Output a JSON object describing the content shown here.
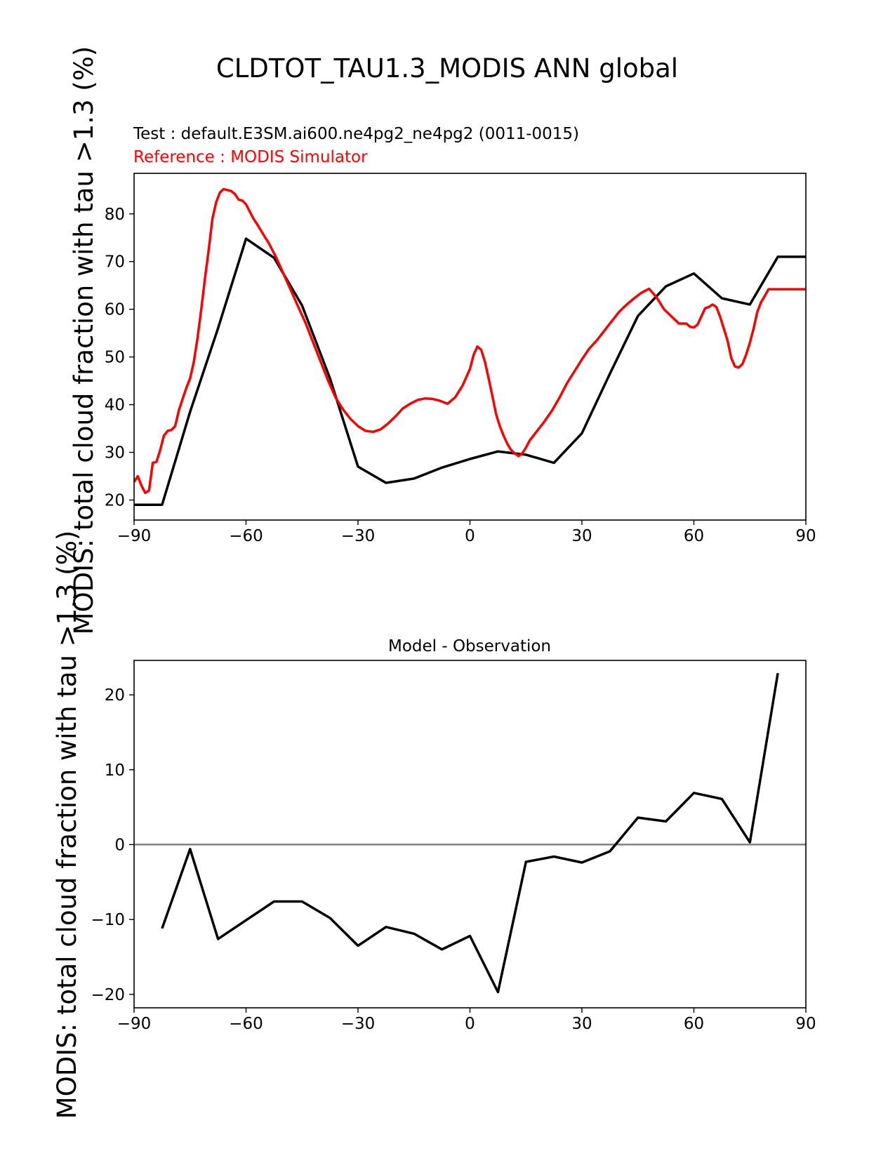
{
  "figure": {
    "title": "CLDTOT_TAU1.3_MODIS ANN global",
    "test_label": "Test : default.E3SM.ai600.ne4pg2_ne4pg2 (0011-0015)",
    "reference_label": "Reference : MODIS Simulator",
    "ylabel": "MODIS: total cloud fraction with tau >1.3 (%)",
    "colors": {
      "test": "#000000",
      "reference": "#ff0000",
      "zero_line": "#808080"
    }
  },
  "chart_data": [
    {
      "type": "line",
      "title": "",
      "xlabel": "",
      "ylabel": "MODIS: total cloud fraction with tau >1.3 (%)",
      "xlim": [
        -90,
        90
      ],
      "ylim": [
        15.8,
        88.5
      ],
      "xticks": [
        -90,
        -60,
        -30,
        0,
        30,
        60,
        90
      ],
      "xtick_labels": [
        "−90",
        "−60",
        "−30",
        "0",
        "30",
        "60",
        "90"
      ],
      "yticks": [
        20,
        30,
        40,
        50,
        60,
        70,
        80
      ],
      "ytick_labels": [
        "20",
        "30",
        "40",
        "50",
        "60",
        "70",
        "80"
      ],
      "grid": false,
      "series": [
        {
          "name": "Test : default.E3SM.ai600.ne4pg2_ne4pg2 (0011-0015)",
          "color": "#000000",
          "x": [
            -90,
            -82.5,
            -75,
            -67.5,
            -60,
            -52.5,
            -45,
            -37.5,
            -30,
            -22.5,
            -15,
            -7.5,
            0,
            7.5,
            15,
            22.5,
            30,
            37.5,
            45,
            52.5,
            60,
            67.5,
            75,
            82.5,
            90
          ],
          "y": [
            19.0,
            19.0,
            38.5,
            56.0,
            74.8,
            70.8,
            60.8,
            45.5,
            27.0,
            23.6,
            24.5,
            26.8,
            28.6,
            30.2,
            29.5,
            27.8,
            34.0,
            46.5,
            58.6,
            64.8,
            67.5,
            62.3,
            61.0,
            71.0,
            71.0
          ]
        },
        {
          "name": "Reference : MODIS Simulator",
          "color": "#ff0000",
          "x": [
            -90,
            -89,
            -88,
            -87,
            -86,
            -85,
            -84,
            -83,
            -82,
            -81,
            -80,
            -79,
            -78,
            -77,
            -76,
            -75,
            -74,
            -73,
            -72,
            -71,
            -70,
            -69,
            -68,
            -67,
            -66,
            -65,
            -64,
            -63,
            -62,
            -61,
            -60,
            -59,
            -58,
            -57,
            -56,
            -55,
            -54,
            -52,
            -50,
            -48,
            -46,
            -44,
            -42,
            -40,
            -38,
            -36,
            -34,
            -32,
            -30,
            -28,
            -26,
            -24,
            -22,
            -20,
            -18,
            -16,
            -14,
            -12,
            -10,
            -8,
            -6,
            -4,
            -2,
            0,
            1,
            2,
            3,
            4,
            5,
            6,
            7,
            8,
            9,
            10,
            11,
            12,
            13,
            14,
            15,
            16,
            18,
            20,
            22,
            24,
            26,
            28,
            30,
            32,
            34,
            36,
            38,
            40,
            42,
            44,
            46,
            48,
            50,
            52,
            54,
            56,
            58,
            59,
            60,
            61,
            62,
            63,
            64,
            65,
            66,
            67,
            68,
            69,
            70,
            71,
            72,
            73,
            74,
            75,
            76,
            77,
            78,
            79,
            80,
            81,
            82,
            83,
            84,
            85,
            86,
            87,
            88,
            89,
            90
          ],
          "y": [
            23.8,
            25.0,
            23.0,
            21.5,
            22.0,
            27.8,
            28.0,
            30.5,
            33.5,
            34.5,
            34.7,
            35.5,
            38.8,
            41.2,
            43.5,
            45.5,
            49.0,
            54.0,
            60.0,
            66.5,
            72.5,
            79.0,
            82.5,
            84.5,
            85.2,
            85.0,
            84.8,
            84.2,
            83.0,
            82.8,
            82.0,
            80.5,
            79.0,
            77.8,
            76.5,
            75.2,
            74.0,
            71.0,
            67.5,
            64.0,
            60.5,
            57.0,
            53.0,
            49.0,
            45.0,
            41.5,
            39.0,
            37.0,
            35.5,
            34.5,
            34.3,
            34.8,
            36.0,
            37.5,
            39.2,
            40.2,
            41.0,
            41.3,
            41.2,
            40.8,
            40.2,
            41.5,
            44.0,
            47.5,
            50.5,
            52.2,
            51.5,
            49.0,
            45.5,
            41.8,
            38.0,
            35.5,
            33.5,
            31.8,
            30.5,
            29.8,
            29.2,
            29.8,
            31.0,
            32.5,
            34.5,
            36.5,
            38.8,
            41.5,
            44.5,
            47.0,
            49.5,
            51.8,
            53.5,
            55.5,
            57.5,
            59.5,
            61.0,
            62.3,
            63.5,
            64.3,
            62.5,
            60.0,
            58.5,
            57.0,
            57.0,
            56.3,
            56.2,
            56.8,
            58.5,
            60.2,
            60.5,
            61.0,
            60.5,
            58.5,
            56.0,
            53.5,
            49.8,
            48.0,
            47.8,
            48.5,
            50.5,
            53.0,
            56.0,
            59.5,
            61.5,
            62.8,
            64.2,
            64.2,
            64.2,
            64.2,
            64.2,
            64.2,
            64.2,
            64.2,
            64.2,
            64.2,
            64.2
          ]
        }
      ]
    },
    {
      "type": "line",
      "title": "Model - Observation",
      "xlabel": "",
      "ylabel": "MODIS: total cloud fraction with tau >1.3 (%)",
      "xlim": [
        -90,
        90
      ],
      "ylim": [
        -21.8,
        24.6
      ],
      "xticks": [
        -90,
        -60,
        -30,
        0,
        30,
        60,
        90
      ],
      "xtick_labels": [
        "−90",
        "−60",
        "−30",
        "0",
        "30",
        "60",
        "90"
      ],
      "yticks": [
        -20,
        -10,
        0,
        10,
        20
      ],
      "ytick_labels": [
        "−20",
        "−10",
        "0",
        "10",
        "20"
      ],
      "grid": false,
      "zero_line": true,
      "series": [
        {
          "name": "Model - Observation",
          "color": "#000000",
          "x": [
            -82.5,
            -75,
            -67.5,
            -60,
            -52.5,
            -45,
            -37.5,
            -30,
            -22.5,
            -15,
            -7.5,
            0,
            7.5,
            15,
            22.5,
            30,
            37.5,
            45,
            52.5,
            60,
            67.5,
            75,
            82.5
          ],
          "y": [
            -11.2,
            -0.6,
            -12.6,
            -10.1,
            -7.6,
            -7.6,
            -9.8,
            -13.5,
            -11.0,
            -11.9,
            -14.0,
            -12.2,
            -19.7,
            -2.3,
            -1.6,
            -2.4,
            -0.9,
            3.6,
            3.1,
            6.9,
            6.1,
            0.3,
            22.9
          ]
        }
      ]
    }
  ]
}
